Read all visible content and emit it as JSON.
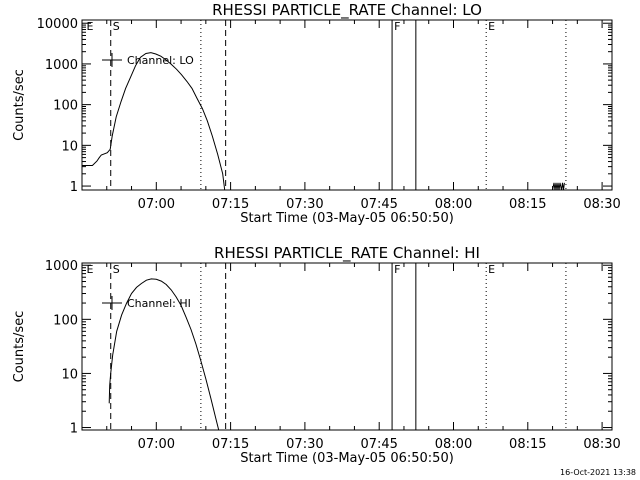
{
  "footer": {
    "timestamp": "16-Oct-2021 13:38"
  },
  "chart_data": [
    {
      "type": "line",
      "title": "RHESSI PARTICLE_RATE Channel: LO",
      "xlabel": "Start Time (03-May-05 06:50:50)",
      "ylabel": "Counts/sec",
      "yscale": "log",
      "ylim": [
        0.8,
        12000
      ],
      "xlim_minutes_after_0650": [
        -5,
        102
      ],
      "x_ticks": [
        {
          "t": 10,
          "label": "07:00"
        },
        {
          "t": 25,
          "label": "07:15"
        },
        {
          "t": 40,
          "label": "07:30"
        },
        {
          "t": 55,
          "label": "07:45"
        },
        {
          "t": 70,
          "label": "08:00"
        },
        {
          "t": 85,
          "label": "08:15"
        },
        {
          "t": 100,
          "label": "08:30"
        }
      ],
      "y_ticks": [
        {
          "v": 1,
          "label": "1"
        },
        {
          "v": 10,
          "label": "10"
        },
        {
          "v": 100,
          "label": "100"
        },
        {
          "v": 1000,
          "label": "1000"
        },
        {
          "v": 10000,
          "label": "10000"
        }
      ],
      "legend": {
        "name": "Channel: LO",
        "position": "top-left"
      },
      "markers": [
        {
          "t": -4.5,
          "label": "E",
          "style": "none"
        },
        {
          "t": 0.8,
          "label": "S",
          "style": "dashed"
        },
        {
          "t": 19,
          "label": "",
          "style": "dotted"
        },
        {
          "t": 24,
          "label": "",
          "style": "dashed"
        },
        {
          "t": 57.6,
          "label": "F",
          "style": "solid"
        },
        {
          "t": 62.4,
          "label": "",
          "style": "solid"
        },
        {
          "t": 76.6,
          "label": "E",
          "style": "dotted"
        },
        {
          "t": 92.7,
          "label": "",
          "style": "dotted"
        }
      ],
      "series": [
        {
          "name": "Channel: LO",
          "x": [
            -4.9,
            -2.9,
            -2.0,
            -1.5,
            -1.1,
            0.1,
            0.7,
            1.1,
            1.9,
            2.9,
            3.8,
            4.8,
            5.8,
            6.8,
            7.9,
            8.9,
            9.9,
            10.9,
            12.0,
            13.0,
            14.1,
            15.1,
            16.2,
            17.2,
            18.2,
            19.3,
            20.3,
            21.3,
            22.4,
            23.4,
            23.8
          ],
          "y": [
            3.2,
            3.2,
            4.1,
            5.0,
            5.8,
            6.6,
            8.0,
            17,
            50,
            120,
            250,
            470,
            900,
            1450,
            1800,
            1900,
            1750,
            1550,
            1250,
            980,
            740,
            540,
            370,
            250,
            145,
            80,
            40,
            17,
            6,
            2,
            0.8
          ]
        },
        {
          "name": "",
          "x": [
            90.0,
            90.3,
            90.5,
            90.7,
            90.9,
            91.1,
            91.3,
            91.5,
            91.8,
            92.0,
            92.2,
            92.4
          ],
          "y": [
            0.8,
            1.2,
            0.8,
            1.2,
            0.8,
            1.2,
            0.8,
            1.2,
            0.8,
            1.2,
            0.8,
            1.2
          ]
        }
      ]
    },
    {
      "type": "line",
      "title": "RHESSI PARTICLE_RATE Channel: HI",
      "xlabel": "Start Time (03-May-05 06:50:50)",
      "ylabel": "Counts/sec",
      "yscale": "log",
      "ylim": [
        0.9,
        1100
      ],
      "xlim_minutes_after_0650": [
        -5,
        102
      ],
      "x_ticks": [
        {
          "t": 10,
          "label": "07:00"
        },
        {
          "t": 25,
          "label": "07:15"
        },
        {
          "t": 40,
          "label": "07:30"
        },
        {
          "t": 55,
          "label": "07:45"
        },
        {
          "t": 70,
          "label": "08:00"
        },
        {
          "t": 85,
          "label": "08:15"
        },
        {
          "t": 100,
          "label": "08:30"
        }
      ],
      "y_ticks": [
        {
          "v": 1,
          "label": "1"
        },
        {
          "v": 10,
          "label": "10"
        },
        {
          "v": 100,
          "label": "100"
        },
        {
          "v": 1000,
          "label": "1000"
        }
      ],
      "legend": {
        "name": "Channel: HI",
        "position": "top-left"
      },
      "markers": [
        {
          "t": -4.5,
          "label": "E",
          "style": "none"
        },
        {
          "t": 0.8,
          "label": "S",
          "style": "dashed"
        },
        {
          "t": 19,
          "label": "",
          "style": "dotted"
        },
        {
          "t": 24,
          "label": "",
          "style": "dashed"
        },
        {
          "t": 57.6,
          "label": "F",
          "style": "solid"
        },
        {
          "t": 62.4,
          "label": "",
          "style": "solid"
        },
        {
          "t": 76.6,
          "label": "E",
          "style": "dotted"
        },
        {
          "t": 92.7,
          "label": "",
          "style": "dotted"
        }
      ],
      "series": [
        {
          "name": "Channel: HI",
          "x": [
            0.5,
            0.6,
            0.8,
            1.2,
            2.0,
            3.0,
            4.0,
            5.0,
            6.0,
            7.0,
            8.0,
            9.0,
            10.0,
            11.0,
            12.0,
            13.0,
            14.0,
            15.0,
            16.0,
            17.0,
            18.0,
            19.0,
            20.0,
            21.0,
            22.0,
            22.6
          ],
          "y": [
            2.8,
            6.0,
            10,
            22,
            60,
            120,
            200,
            300,
            390,
            460,
            530,
            560,
            550,
            510,
            440,
            350,
            260,
            180,
            110,
            65,
            35,
            17,
            8,
            3.5,
            1.5,
            0.9
          ]
        }
      ]
    }
  ]
}
